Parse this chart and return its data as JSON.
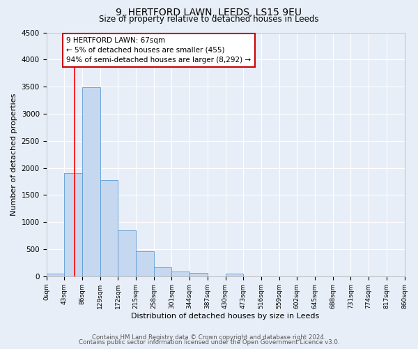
{
  "title": "9, HERTFORD LAWN, LEEDS, LS15 9EU",
  "subtitle": "Size of property relative to detached houses in Leeds",
  "xlabel": "Distribution of detached houses by size in Leeds",
  "ylabel": "Number of detached properties",
  "bar_color": "#c5d8f0",
  "bar_edge_color": "#5b9bd5",
  "background_color": "#e8eef7",
  "grid_color": "#ffffff",
  "red_line_x": 67,
  "annotation_line1": "9 HERTFORD LAWN: 67sqm",
  "annotation_line2": "← 5% of detached houses are smaller (455)",
  "annotation_line3": "94% of semi-detached houses are larger (8,292) →",
  "annotation_box_color": "#ffffff",
  "annotation_box_edge": "#cc0000",
  "bin_edges": [
    0,
    43,
    86,
    129,
    172,
    215,
    258,
    301,
    344,
    387,
    430,
    473,
    516,
    559,
    602,
    645,
    688,
    731,
    774,
    817,
    860
  ],
  "bin_heights": [
    50,
    1910,
    3490,
    1770,
    850,
    460,
    170,
    90,
    60,
    0,
    50,
    0,
    0,
    0,
    0,
    0,
    0,
    0,
    0,
    0
  ],
  "ylim": [
    0,
    4500
  ],
  "yticks": [
    0,
    500,
    1000,
    1500,
    2000,
    2500,
    3000,
    3500,
    4000,
    4500
  ],
  "footer_line1": "Contains HM Land Registry data © Crown copyright and database right 2024.",
  "footer_line2": "Contains public sector information licensed under the Open Government Licence v3.0."
}
